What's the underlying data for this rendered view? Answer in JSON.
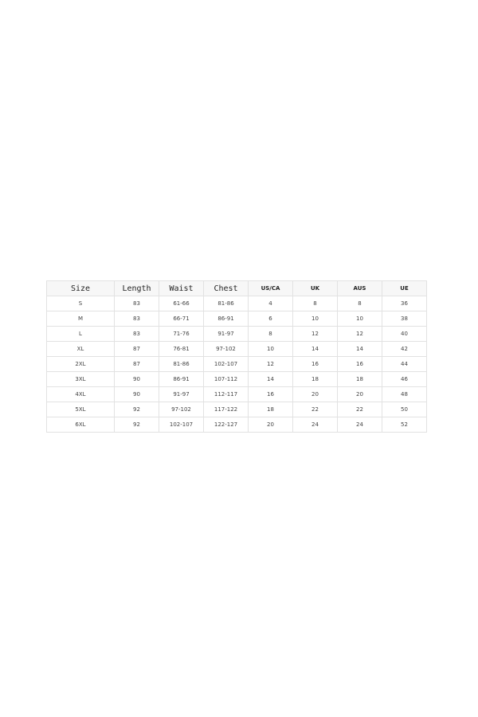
{
  "size_chart": {
    "headers": [
      "Size",
      "Length",
      "Waist",
      "Chest",
      "US/CA",
      "UK",
      "AUS",
      "UE"
    ],
    "rows": [
      [
        "S",
        "83",
        "61-66",
        "81-86",
        "4",
        "8",
        "8",
        "36"
      ],
      [
        "M",
        "83",
        "66-71",
        "86-91",
        "6",
        "10",
        "10",
        "38"
      ],
      [
        "L",
        "83",
        "71-76",
        "91-97",
        "8",
        "12",
        "12",
        "40"
      ],
      [
        "XL",
        "87",
        "76-81",
        "97-102",
        "10",
        "14",
        "14",
        "42"
      ],
      [
        "2XL",
        "87",
        "81-86",
        "102-107",
        "12",
        "16",
        "16",
        "44"
      ],
      [
        "3XL",
        "90",
        "86-91",
        "107-112",
        "14",
        "18",
        "18",
        "46"
      ],
      [
        "4XL",
        "90",
        "91-97",
        "112-117",
        "16",
        "20",
        "20",
        "48"
      ],
      [
        "5XL",
        "92",
        "97-102",
        "117-122",
        "18",
        "22",
        "22",
        "50"
      ],
      [
        "6XL",
        "92",
        "102-107",
        "122-127",
        "20",
        "24",
        "24",
        "52"
      ]
    ]
  }
}
